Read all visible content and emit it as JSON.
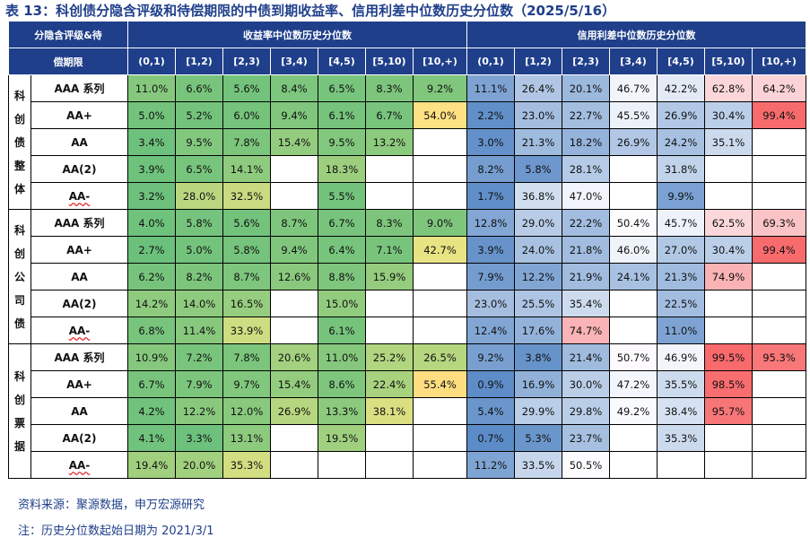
{
  "title": "表 13：科创债分隐含评级和待偿期限的中债到期收益率、信用利差中位数历史分位数（2025/5/16）",
  "header": {
    "corner_line1": "分隐含评级&待",
    "corner_line2": "偿期限",
    "yield_group": "收益率中位数历史分位数",
    "spread_group": "信用利差中位数历史分位数",
    "terms": [
      "(0,1)",
      "[1,2)",
      "[2,3)",
      "[3,4)",
      "[4,5)",
      "[5,10)",
      "[10,+)"
    ]
  },
  "groups": [
    {
      "name": "科创债整体",
      "rows": [
        {
          "rating": "AAA 系列",
          "squiggle": false,
          "yield": [
            "11.0%",
            "6.6%",
            "5.6%",
            "8.4%",
            "6.5%",
            "8.3%",
            "9.2%"
          ],
          "spread": [
            "11.1%",
            "26.4%",
            "20.1%",
            "46.7%",
            "42.2%",
            "62.8%",
            "64.2%"
          ]
        },
        {
          "rating": "AA+",
          "squiggle": false,
          "yield": [
            "5.0%",
            "5.2%",
            "6.0%",
            "9.4%",
            "6.1%",
            "6.7%",
            "54.0%"
          ],
          "spread": [
            "2.2%",
            "23.0%",
            "22.7%",
            "45.5%",
            "26.9%",
            "30.4%",
            "99.4%"
          ]
        },
        {
          "rating": "AA",
          "squiggle": false,
          "yield": [
            "3.4%",
            "9.5%",
            "7.8%",
            "15.4%",
            "9.5%",
            "13.2%",
            ""
          ],
          "spread": [
            "3.0%",
            "21.3%",
            "18.2%",
            "26.9%",
            "24.2%",
            "35.1%",
            ""
          ]
        },
        {
          "rating": "AA(2)",
          "squiggle": false,
          "yield": [
            "3.9%",
            "6.5%",
            "14.1%",
            "",
            "18.3%",
            "",
            ""
          ],
          "spread": [
            "8.2%",
            "5.8%",
            "28.1%",
            "",
            "31.8%",
            "",
            ""
          ]
        },
        {
          "rating": "AA-",
          "squiggle": true,
          "yield": [
            "3.2%",
            "28.0%",
            "32.5%",
            "",
            "5.5%",
            "",
            ""
          ],
          "spread": [
            "1.7%",
            "36.8%",
            "47.0%",
            "",
            "9.9%",
            "",
            ""
          ]
        }
      ]
    },
    {
      "name": "科创公司债",
      "rows": [
        {
          "rating": "AAA 系列",
          "squiggle": false,
          "yield": [
            "4.0%",
            "5.8%",
            "5.6%",
            "8.7%",
            "6.7%",
            "8.3%",
            "9.0%"
          ],
          "spread": [
            "12.8%",
            "29.0%",
            "22.2%",
            "50.4%",
            "45.7%",
            "62.5%",
            "69.3%"
          ]
        },
        {
          "rating": "AA+",
          "squiggle": false,
          "yield": [
            "2.7%",
            "5.0%",
            "5.8%",
            "9.4%",
            "6.4%",
            "7.1%",
            "42.7%"
          ],
          "spread": [
            "3.9%",
            "24.0%",
            "21.8%",
            "46.0%",
            "27.0%",
            "30.4%",
            "99.4%"
          ]
        },
        {
          "rating": "AA",
          "squiggle": false,
          "yield": [
            "6.2%",
            "8.2%",
            "8.7%",
            "12.6%",
            "8.8%",
            "15.9%",
            ""
          ],
          "spread": [
            "7.9%",
            "12.2%",
            "21.9%",
            "24.1%",
            "21.3%",
            "74.9%",
            ""
          ]
        },
        {
          "rating": "AA(2)",
          "squiggle": false,
          "yield": [
            "14.2%",
            "14.0%",
            "16.5%",
            "",
            "15.0%",
            "",
            ""
          ],
          "spread": [
            "23.0%",
            "25.5%",
            "35.4%",
            "",
            "22.5%",
            "",
            ""
          ]
        },
        {
          "rating": "AA-",
          "squiggle": true,
          "yield": [
            "6.8%",
            "11.4%",
            "33.9%",
            "",
            "6.1%",
            "",
            ""
          ],
          "spread": [
            "12.4%",
            "17.6%",
            "74.7%",
            "",
            "11.0%",
            "",
            ""
          ]
        }
      ]
    },
    {
      "name": "科创票据",
      "rows": [
        {
          "rating": "AAA 系列",
          "squiggle": false,
          "yield": [
            "10.9%",
            "7.2%",
            "7.8%",
            "20.6%",
            "11.0%",
            "25.2%",
            "26.5%"
          ],
          "spread": [
            "9.2%",
            "3.8%",
            "21.4%",
            "50.7%",
            "46.9%",
            "99.5%",
            "95.3%"
          ]
        },
        {
          "rating": "AA+",
          "squiggle": false,
          "yield": [
            "6.7%",
            "7.9%",
            "9.7%",
            "15.4%",
            "8.6%",
            "22.4%",
            "55.4%"
          ],
          "spread": [
            "0.9%",
            "16.9%",
            "30.0%",
            "47.2%",
            "35.5%",
            "98.5%",
            ""
          ]
        },
        {
          "rating": "AA",
          "squiggle": false,
          "yield": [
            "4.2%",
            "12.2%",
            "12.0%",
            "26.9%",
            "13.3%",
            "38.1%",
            ""
          ],
          "spread": [
            "5.4%",
            "29.9%",
            "29.8%",
            "49.2%",
            "38.4%",
            "95.7%",
            ""
          ]
        },
        {
          "rating": "AA(2)",
          "squiggle": false,
          "yield": [
            "4.1%",
            "3.3%",
            "13.1%",
            "",
            "19.5%",
            "",
            ""
          ],
          "spread": [
            "0.7%",
            "5.3%",
            "23.7%",
            "",
            "35.3%",
            "",
            ""
          ]
        },
        {
          "rating": "AA-",
          "squiggle": true,
          "yield": [
            "19.4%",
            "20.0%",
            "35.3%",
            "",
            "",
            "",
            ""
          ],
          "spread": [
            "11.2%",
            "33.5%",
            "50.5%",
            "",
            "",
            "",
            ""
          ]
        }
      ]
    }
  ],
  "colors": {
    "header_bg": "#1f3f8a",
    "yield_scale": [
      "#63be7b",
      "#ffeb84",
      "#f8696b"
    ],
    "spread_scale": [
      "#5a8ac6",
      "#fcfcff",
      "#f8696b"
    ]
  },
  "notes": {
    "source": "资料来源：聚源数据，申万宏源研究",
    "note": "注：历史分位数起始日期为 2021/3/1"
  }
}
